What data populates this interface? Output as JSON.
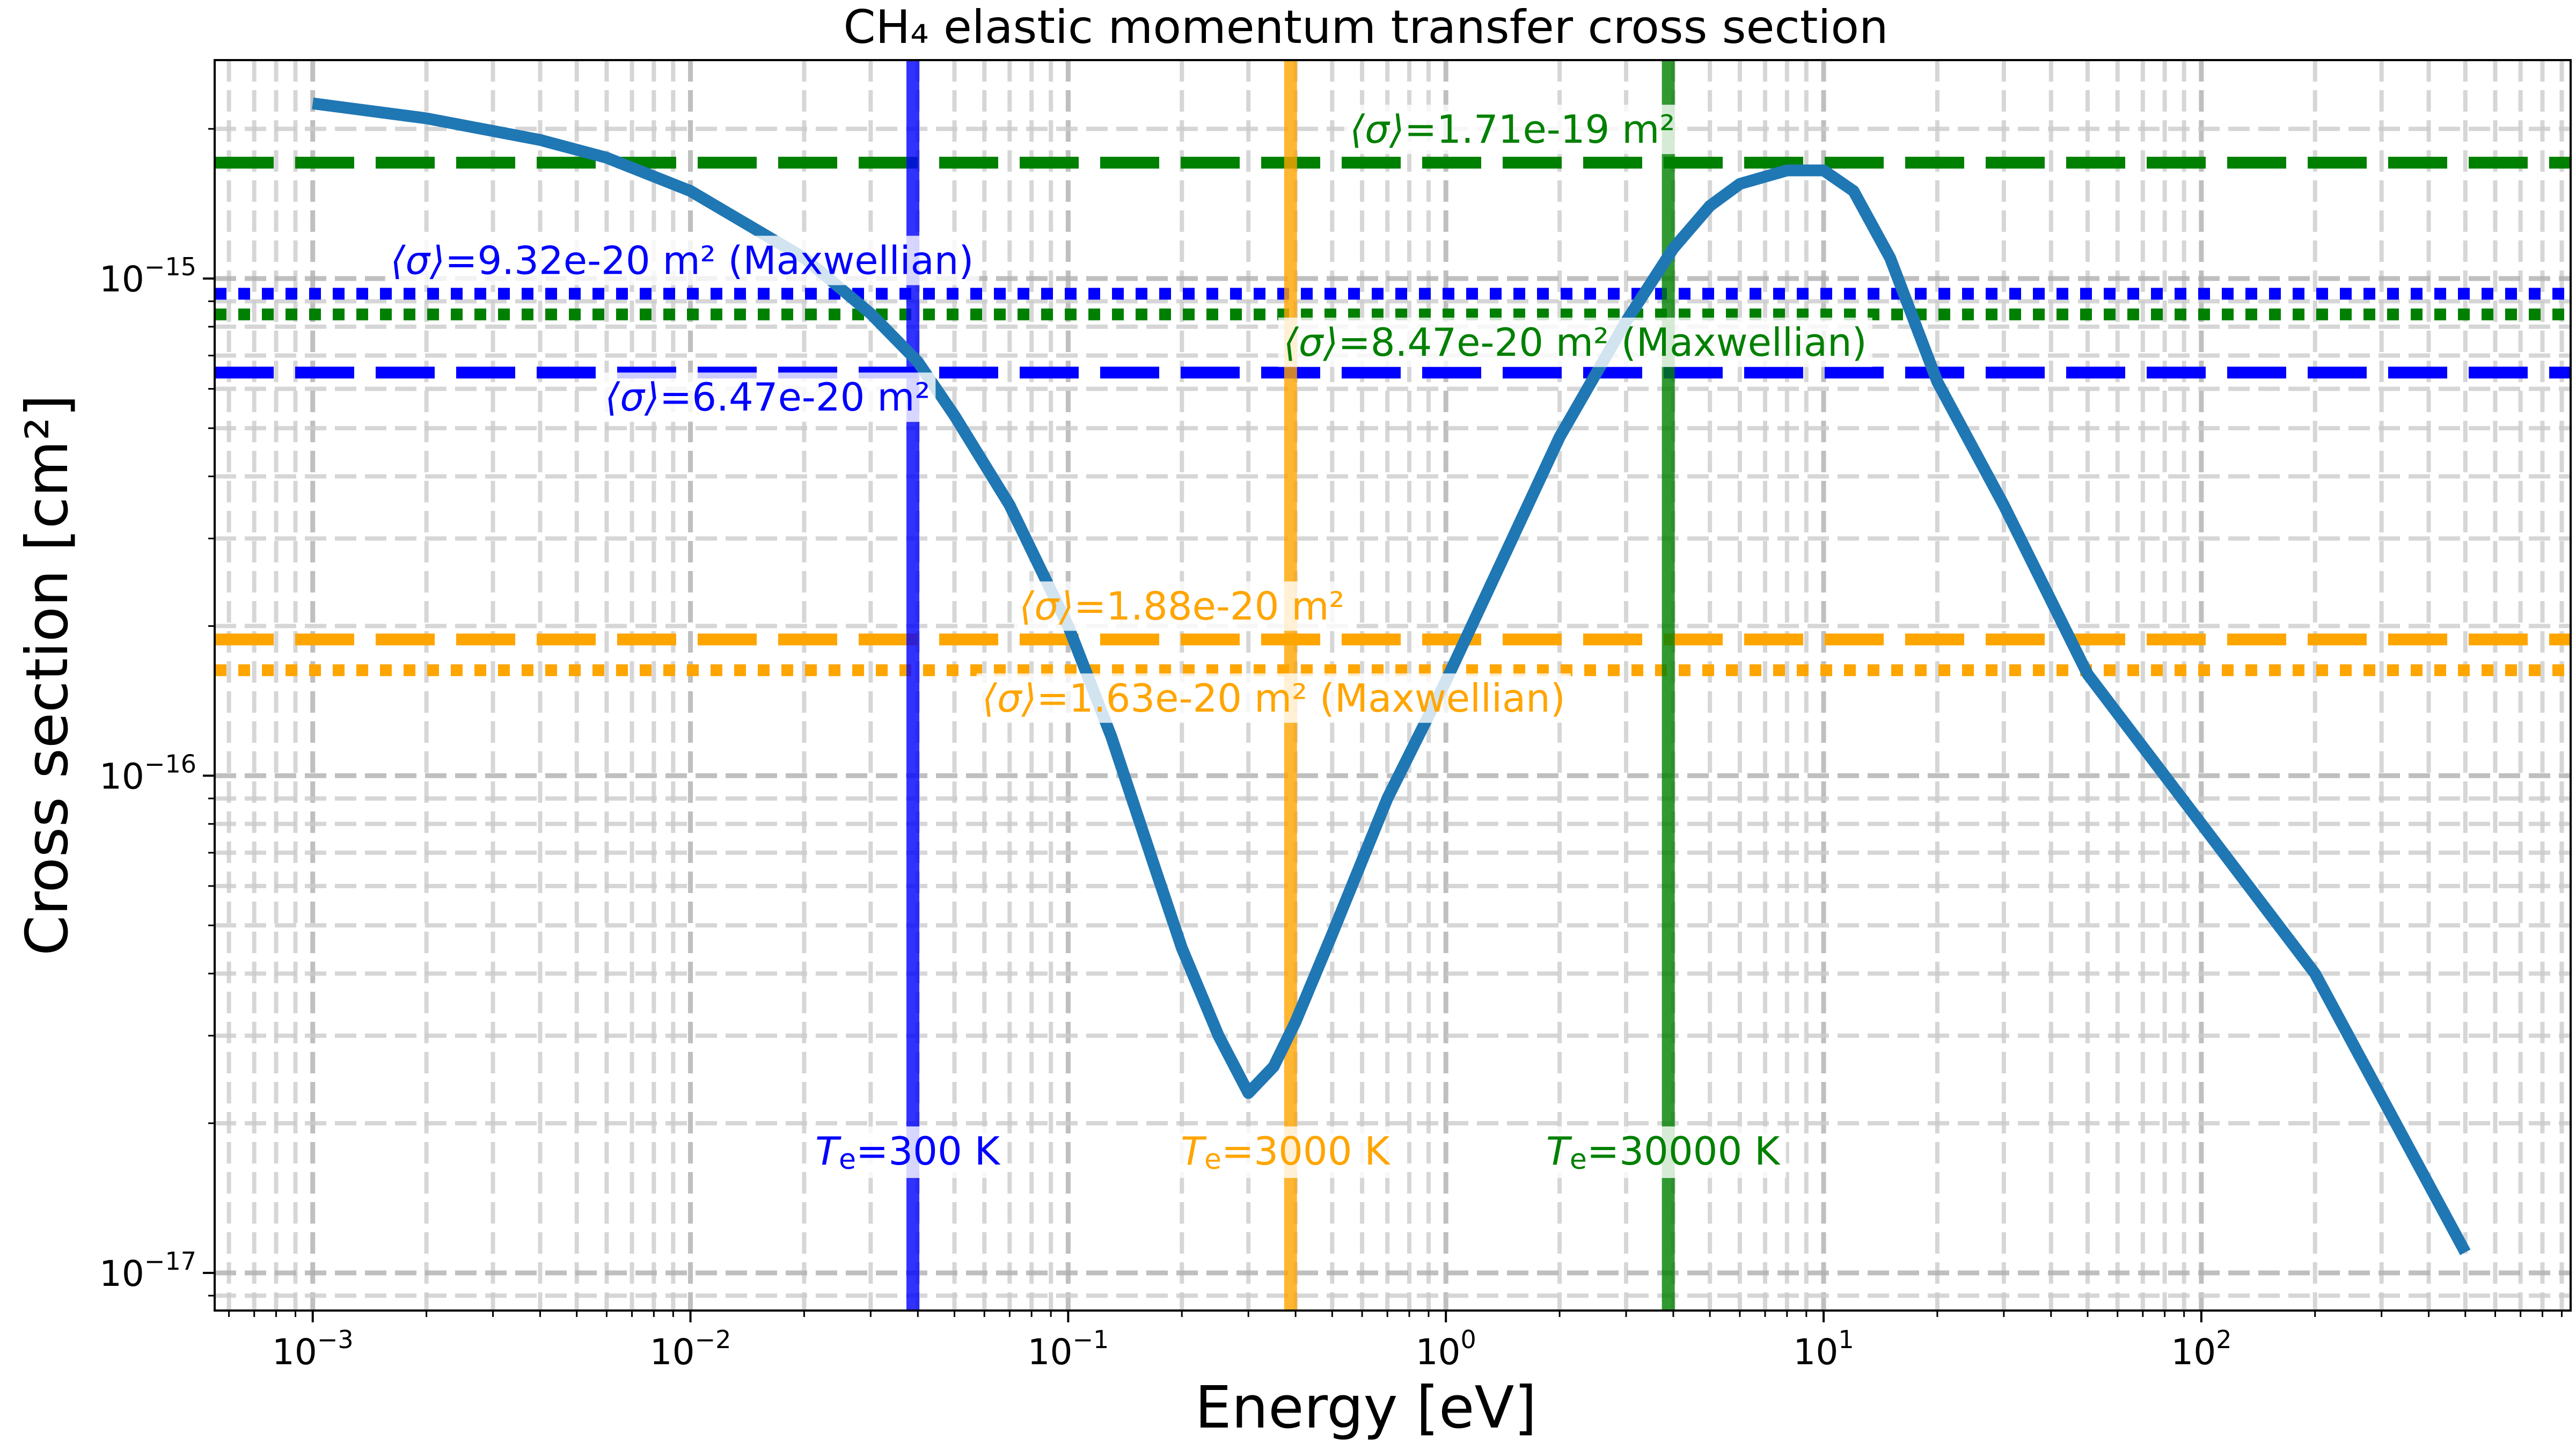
{
  "chart_data": {
    "type": "line",
    "title": "CH₄ elastic momentum transfer cross section",
    "xlabel": "Energy [eV]",
    "ylabel": "Cross section [cm²]",
    "xscale": "log",
    "yscale": "log",
    "xlim": [
      0.00055,
      950
    ],
    "ylim": [
      8.4e-18,
      2.75e-15
    ],
    "grid": true,
    "x_ticks": [
      {
        "value": 0.001,
        "base": "10",
        "exp": "−3"
      },
      {
        "value": 0.01,
        "base": "10",
        "exp": "−2"
      },
      {
        "value": 0.1,
        "base": "10",
        "exp": "−1"
      },
      {
        "value": 1,
        "base": "10",
        "exp": "0"
      },
      {
        "value": 10,
        "base": "10",
        "exp": "1"
      },
      {
        "value": 100,
        "base": "10",
        "exp": "2"
      }
    ],
    "y_ticks": [
      {
        "value": 1e-15,
        "base": "10",
        "exp": "−15"
      },
      {
        "value": 1e-16,
        "base": "10",
        "exp": "−16"
      },
      {
        "value": 1e-17,
        "base": "10",
        "exp": "−17"
      }
    ],
    "series": [
      {
        "color": "#1f77b4",
        "x": [
          0.001,
          0.002,
          0.004,
          0.006,
          0.01,
          0.02,
          0.03,
          0.04,
          0.05,
          0.07,
          0.1,
          0.13,
          0.17,
          0.2,
          0.25,
          0.3,
          0.35,
          0.4,
          0.5,
          0.7,
          1,
          1.5,
          2,
          3,
          4,
          5,
          6,
          8,
          10,
          12,
          15,
          20,
          30,
          50,
          100,
          200,
          500
        ],
        "y": [
          2.25e-15,
          2.1e-15,
          1.9e-15,
          1.75e-15,
          1.5e-15,
          1.1e-15,
          8.5e-16,
          6.8e-16,
          5.3e-16,
          3.5e-16,
          2e-16,
          1.2e-16,
          6.5e-17,
          4.5e-17,
          3e-17,
          2.3e-17,
          2.6e-17,
          3.2e-17,
          4.8e-17,
          9e-17,
          1.55e-16,
          3e-16,
          4.8e-16,
          8.2e-16,
          1.15e-15,
          1.4e-15,
          1.55e-15,
          1.65e-15,
          1.65e-15,
          1.5e-15,
          1.1e-15,
          6.2e-16,
          3.5e-16,
          1.6e-16,
          8e-17,
          4e-17,
          1.1e-17
        ]
      }
    ],
    "vertical_lines": [
      {
        "x": 0.0388,
        "color": "#0000ff",
        "label_italic": "T",
        "label_sub": "e",
        "label_rest": "=300 K"
      },
      {
        "x": 0.388,
        "color": "#ffa500",
        "label_italic": "T",
        "label_sub": "e",
        "label_rest": "=3000 K"
      },
      {
        "x": 3.88,
        "color": "#008000",
        "label_italic": "T",
        "label_sub": "e",
        "label_rest": "=30000 K"
      }
    ],
    "horizontal_lines": [
      {
        "y": 1.71e-15,
        "color": "#008000",
        "style": "dashed",
        "label_sym": "⟨σ⟩",
        "label_rest": "=1.71e-19 m²",
        "label_x": 1.5
      },
      {
        "y": 9.32e-16,
        "color": "#0000ff",
        "style": "dotted",
        "label_sym": "⟨σ⟩",
        "label_rest": "=9.32e-20 m² (Maxwellian)",
        "label_x": 0.0095
      },
      {
        "y": 8.47e-16,
        "color": "#008000",
        "style": "dotted",
        "label_sym": "⟨σ⟩",
        "label_rest": "=8.47e-20 m² (Maxwellian)",
        "label_x": 2.2
      },
      {
        "y": 6.47e-16,
        "color": "#0000ff",
        "style": "dashed",
        "label_sym": "⟨σ⟩",
        "label_rest": "=6.47e-20 m²",
        "label_x": 0.016
      },
      {
        "y": 1.88e-16,
        "color": "#ffa500",
        "style": "dashed",
        "label_sym": "⟨σ⟩",
        "label_rest": "=1.88e-20 m²",
        "label_x": 0.2
      },
      {
        "y": 1.63e-16,
        "color": "#ffa500",
        "style": "dotted",
        "label_sym": "⟨σ⟩",
        "label_rest": "=1.63e-20 m² (Maxwellian)",
        "label_x": 0.35
      }
    ]
  }
}
